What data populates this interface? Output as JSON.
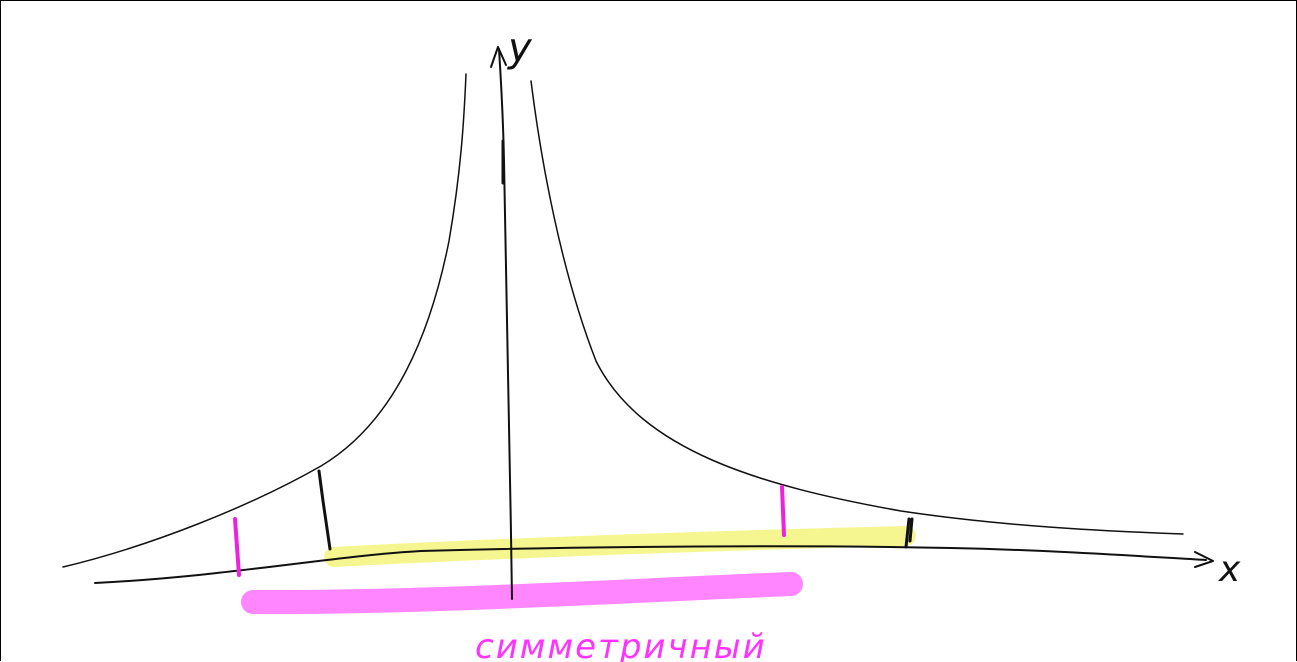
{
  "diagram": {
    "axis_labels": {
      "x": "x",
      "y": "y"
    },
    "caption": "симметричный",
    "colors": {
      "ink": "#111111",
      "highlight_yellow": "#f5f58a",
      "highlight_magenta": "#ff80ff",
      "caption_magenta": "#ff33ff",
      "tick_magenta": "#ee22dd"
    }
  }
}
